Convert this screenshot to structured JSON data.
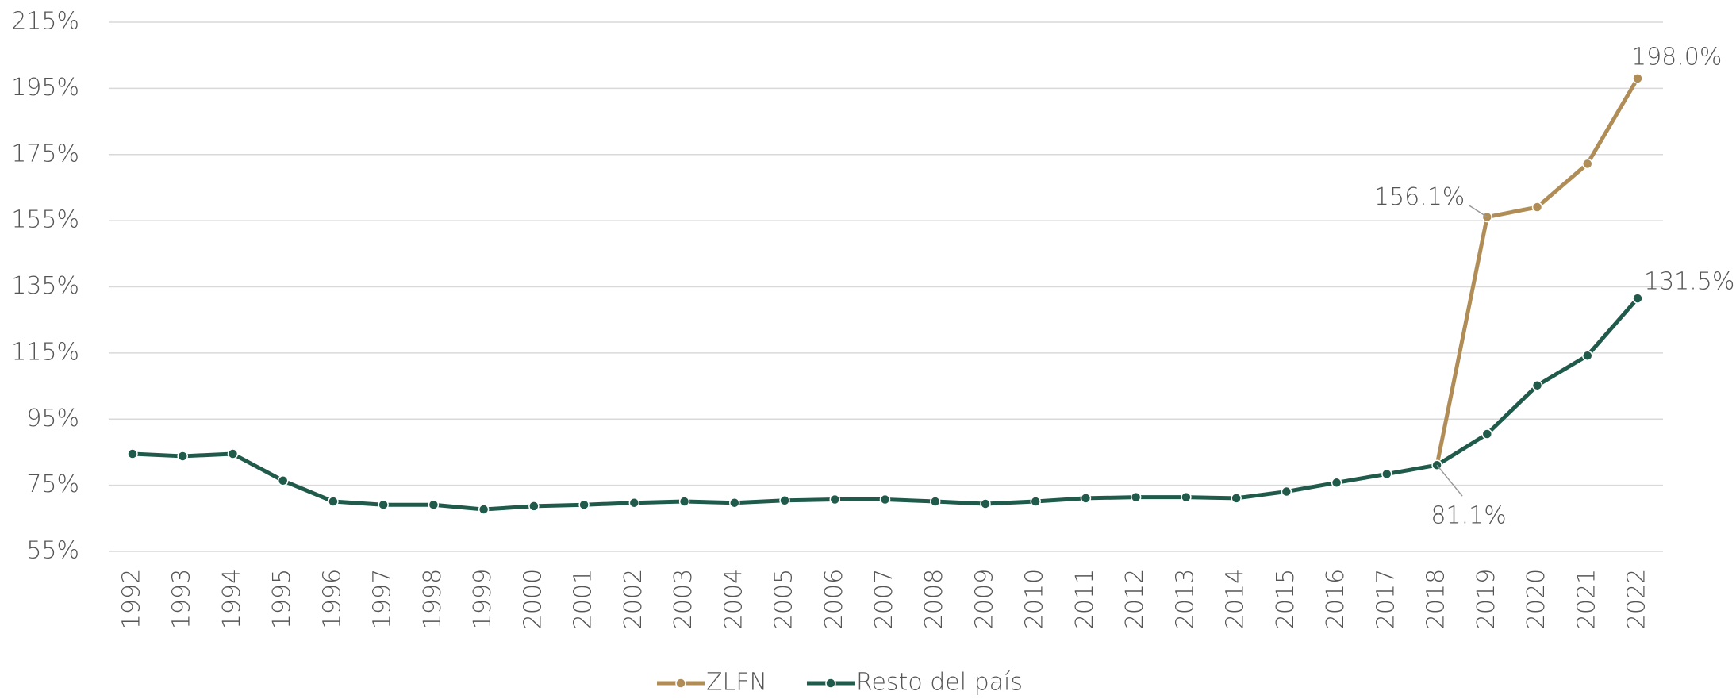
{
  "chart_data": {
    "type": "line",
    "categories": [
      "1992",
      "1993",
      "1994",
      "1995",
      "1996",
      "1997",
      "1998",
      "1999",
      "2000",
      "2001",
      "2002",
      "2003",
      "2004",
      "2005",
      "2006",
      "2007",
      "2008",
      "2009",
      "2010",
      "2011",
      "2012",
      "2013",
      "2014",
      "2015",
      "2016",
      "2017",
      "2018",
      "2019",
      "2020",
      "2021",
      "2022"
    ],
    "series": [
      {
        "name": "ZLFN",
        "color": "#b08d57",
        "values": [
          null,
          null,
          null,
          null,
          null,
          null,
          null,
          null,
          null,
          null,
          null,
          null,
          null,
          null,
          null,
          null,
          null,
          null,
          null,
          null,
          null,
          null,
          null,
          null,
          null,
          null,
          81.1,
          156.1,
          159.1,
          172.2,
          198.0
        ],
        "value_labels": [
          null,
          null,
          null,
          null,
          null,
          null,
          null,
          null,
          null,
          null,
          null,
          null,
          null,
          null,
          null,
          null,
          null,
          null,
          null,
          null,
          null,
          null,
          null,
          null,
          null,
          null,
          null,
          "156.1%",
          null,
          null,
          "198.0%"
        ]
      },
      {
        "name": "Resto del país",
        "color": "#1f5a4a",
        "values": [
          84.5,
          83.8,
          84.5,
          76.4,
          70.1,
          69.1,
          69.1,
          67.7,
          68.7,
          69.1,
          69.7,
          70.1,
          69.7,
          70.4,
          70.7,
          70.7,
          70.1,
          69.4,
          70.1,
          71.1,
          71.4,
          71.4,
          71.1,
          73.1,
          75.8,
          78.4,
          81.1,
          90.5,
          105.2,
          114.2,
          131.5
        ],
        "value_labels": [
          null,
          null,
          null,
          null,
          null,
          null,
          null,
          null,
          null,
          null,
          null,
          null,
          null,
          null,
          null,
          null,
          null,
          null,
          null,
          null,
          null,
          null,
          null,
          null,
          null,
          null,
          "81.1%",
          null,
          null,
          null,
          "131.5%"
        ]
      }
    ],
    "ylim": [
      55,
      215
    ],
    "yticks": [
      {
        "value": 55,
        "label": "55%"
      },
      {
        "value": 75,
        "label": "75%"
      },
      {
        "value": 95,
        "label": "95%"
      },
      {
        "value": 115,
        "label": "115%"
      },
      {
        "value": 135,
        "label": "135%"
      },
      {
        "value": 155,
        "label": "155%"
      },
      {
        "value": 175,
        "label": "175%"
      },
      {
        "value": 195,
        "label": "195%"
      },
      {
        "value": 215,
        "label": "215%"
      }
    ],
    "grid": true,
    "legend": "bottom"
  }
}
